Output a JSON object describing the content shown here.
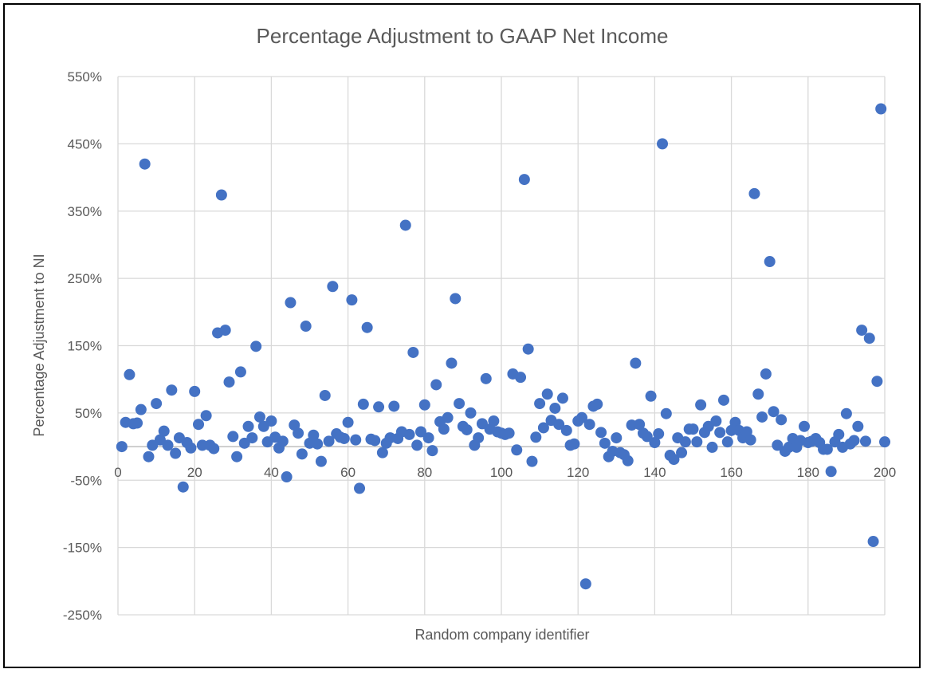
{
  "chart_data": {
    "type": "scatter",
    "title": "Percentage Adjustment to GAAP Net Income",
    "xlabel": "Random company identifier",
    "ylabel": "Percentage Adjustment to NI",
    "xlim": [
      0,
      200
    ],
    "ylim": [
      -250,
      550
    ],
    "x_ticks": [
      0,
      20,
      40,
      60,
      80,
      100,
      120,
      140,
      160,
      180,
      200
    ],
    "y_ticks": [
      550,
      450,
      350,
      250,
      150,
      50,
      -50,
      -150,
      -250
    ],
    "y_tick_labels": [
      "550%",
      "450%",
      "350%",
      "250%",
      "150%",
      "50%",
      "-50%",
      "-150%",
      "-250%"
    ],
    "x_tick_labels": [
      "0",
      "20",
      "40",
      "60",
      "80",
      "100",
      "120",
      "140",
      "160",
      "180",
      "200"
    ],
    "grid": true,
    "legend": "none",
    "series": [
      {
        "name": "Percentage Adjustment to NI",
        "color": "#4472C4",
        "x_start": 1,
        "y": [
          0,
          36,
          107,
          34,
          35,
          55,
          420,
          -15,
          2,
          64,
          10,
          23,
          2,
          84,
          -10,
          13,
          -60,
          6,
          -2,
          82,
          33,
          2,
          46,
          2,
          -3,
          169,
          374,
          173,
          96,
          15,
          -15,
          111,
          5,
          30,
          13,
          149,
          44,
          30,
          7,
          38,
          14,
          -2,
          8,
          -45,
          214,
          32,
          20,
          -11,
          179,
          5,
          17,
          4,
          -22,
          76,
          8,
          238,
          19,
          14,
          12,
          36,
          218,
          10,
          -62,
          63,
          177,
          11,
          9,
          59,
          -9,
          5,
          13,
          60,
          12,
          22,
          329,
          18,
          140,
          2,
          22,
          62,
          13,
          -6,
          92,
          37,
          26,
          43,
          124,
          220,
          64,
          30,
          25,
          50,
          2,
          13,
          34,
          101,
          26,
          38,
          22,
          20,
          18,
          20,
          108,
          -5,
          103,
          397,
          145,
          -22,
          14,
          64,
          28,
          78,
          39,
          57,
          33,
          72,
          24,
          2,
          4,
          38,
          43,
          -204,
          33,
          60,
          63,
          21,
          5,
          -15,
          -7,
          13,
          -9,
          -12,
          -21,
          32,
          124,
          33,
          20,
          15,
          75,
          6,
          19,
          450,
          49,
          -13,
          -19,
          13,
          -9,
          7,
          26,
          26,
          7,
          62,
          21,
          30,
          -1,
          38,
          21,
          69,
          7,
          24,
          36,
          24,
          13,
          22,
          10,
          376,
          78,
          44,
          108,
          275,
          52,
          2,
          40,
          -7,
          -1,
          12,
          -1,
          9,
          30,
          6,
          8,
          12,
          6,
          -4,
          -4,
          -37,
          7,
          18,
          -1,
          49,
          4,
          9,
          30,
          173,
          8,
          161,
          -141,
          97,
          502,
          7
        ]
      }
    ]
  }
}
